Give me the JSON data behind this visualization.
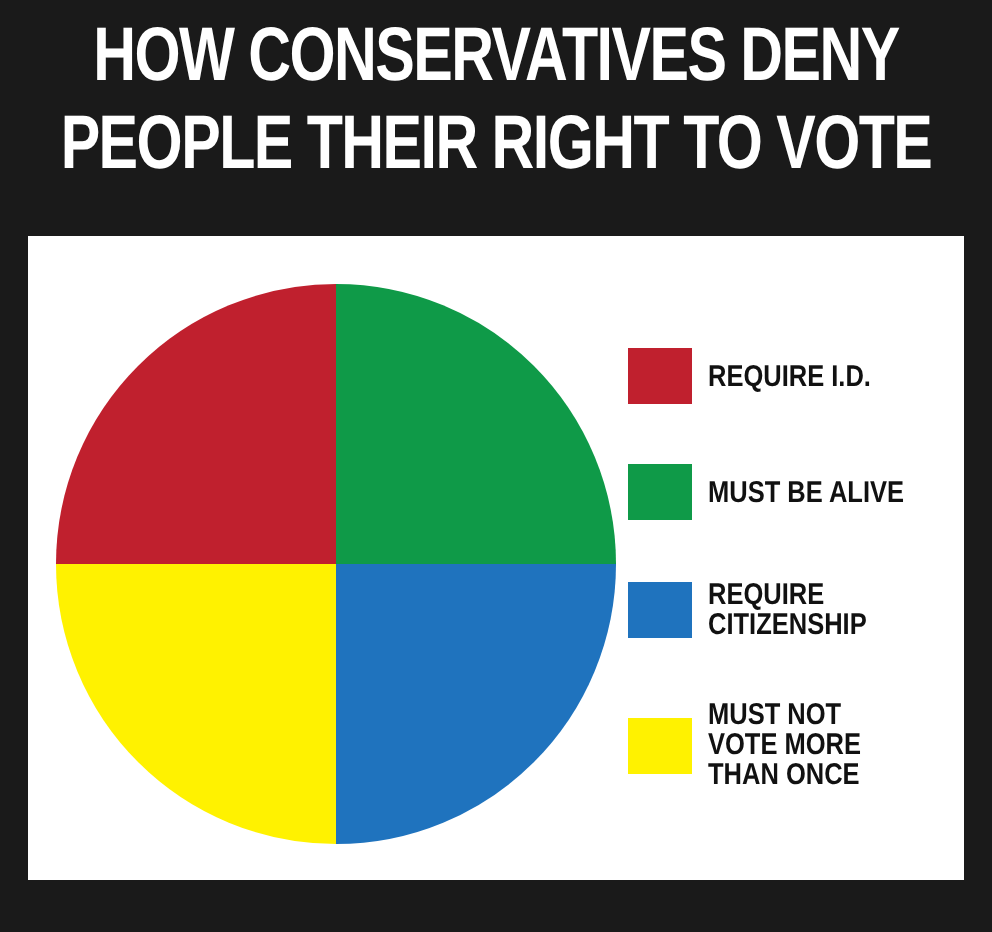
{
  "chart_data": {
    "type": "pie",
    "title": "HOW CONSERVATIVES DENY PEOPLE THEIR RIGHT TO VOTE",
    "categories": [
      "REQUIRE I.D.",
      "MUST BE ALIVE",
      "REQUIRE CITIZENSHIP",
      "MUST NOT VOTE MORE THAN ONCE"
    ],
    "values": [
      25,
      25,
      25,
      25
    ],
    "colors": [
      "#c0202e",
      "#0f9a48",
      "#1f73be",
      "#fff200"
    ],
    "legend": "right"
  }
}
